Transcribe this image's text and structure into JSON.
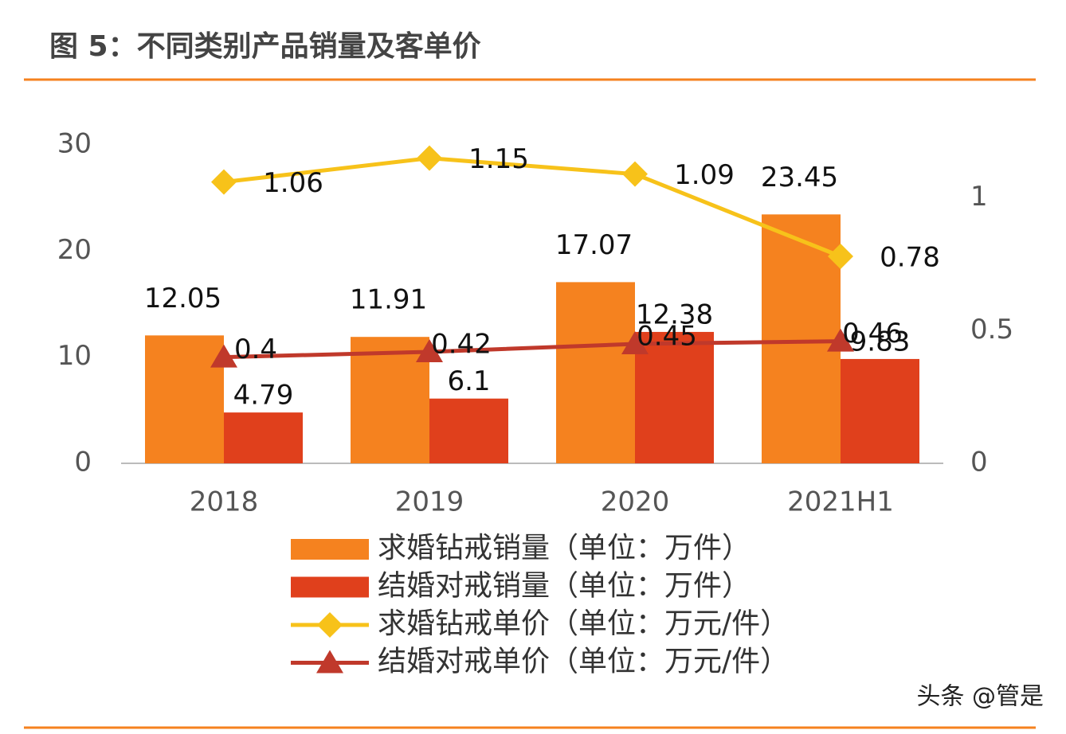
{
  "chart_data": {
    "type": "bar",
    "title": "图 5：不同类别产品销量及客单价",
    "categories": [
      "2018",
      "2019",
      "2020",
      "2021H1"
    ],
    "series": [
      {
        "name": "求婚钻戒销量（单位：万件）",
        "color": "#f5821f",
        "values": [
          12.05,
          11.91,
          17.07,
          23.45
        ]
      },
      {
        "name": "结婚对戒销量（单位：万件）",
        "color": "#e0401c",
        "values": [
          4.79,
          6.1,
          12.38,
          9.83
        ]
      },
      {
        "name": "求婚钻戒单价（单位：万元/件）",
        "color": "#f7c21a",
        "type": "line",
        "marker": "diamond",
        "axis": "y2",
        "values": [
          1.06,
          1.15,
          1.09,
          0.78
        ]
      },
      {
        "name": "结婚对戒单价（单位：万元/件）",
        "color": "#c0392b",
        "type": "line",
        "marker": "triangle",
        "axis": "y2",
        "values": [
          0.4,
          0.42,
          0.45,
          0.46
        ]
      }
    ],
    "ylim": [
      0,
      30
    ],
    "yticks": [
      0,
      10,
      20,
      30
    ],
    "y2lim": [
      0,
      1.2
    ],
    "y2ticks": [
      0,
      0.5,
      1
    ],
    "watermark": "头条 @管是"
  }
}
